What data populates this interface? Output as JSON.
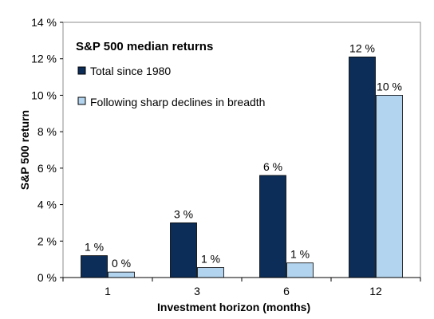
{
  "chart_data": {
    "type": "bar",
    "title": "S&P 500 median returns",
    "xlabel": "Investment horizon (months)",
    "ylabel": "S&P 500 return",
    "categories": [
      "1",
      "3",
      "6",
      "12"
    ],
    "ylim": [
      0,
      14
    ],
    "yticks": [
      0,
      2,
      4,
      6,
      8,
      10,
      12,
      14
    ],
    "ytick_labels": [
      "0 %",
      "2 %",
      "4 %",
      "6 %",
      "8 %",
      "10 %",
      "12 %",
      "14 %"
    ],
    "series": [
      {
        "name": "Total since 1980",
        "color": "#0b2d57",
        "values": [
          1.2,
          3.0,
          5.6,
          12.1
        ],
        "labels": [
          "1 %",
          "3 %",
          "6 %",
          "12 %"
        ]
      },
      {
        "name": "Following sharp declines in breadth",
        "color": "#b3d4ee",
        "values": [
          0.3,
          0.55,
          0.8,
          10.0
        ],
        "labels": [
          "0 %",
          "1 %",
          "1 %",
          "10 %"
        ]
      }
    ],
    "legend_position": "top-left",
    "grid": false
  }
}
